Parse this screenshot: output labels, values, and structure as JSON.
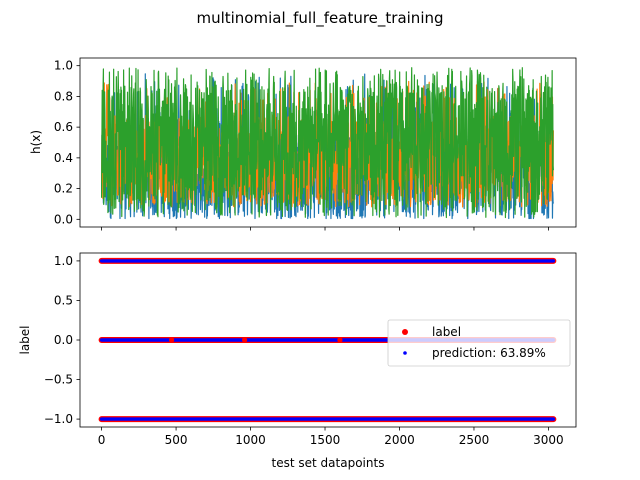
{
  "chart_data": [
    {
      "type": "line",
      "title": "multinomial_full_feature_training",
      "xlabel": "",
      "ylabel": "h(x)",
      "xlim": [
        -145,
        3185
      ],
      "ylim": [
        -0.05,
        1.05
      ],
      "yticks": [
        0.0,
        0.2,
        0.4,
        0.6,
        0.8,
        1.0
      ],
      "ytick_labels": [
        "0.0",
        "0.2",
        "0.4",
        "0.6",
        "0.8",
        "1.0"
      ],
      "xticks": [
        0,
        500,
        1000,
        1500,
        2000,
        2500,
        3000
      ],
      "x_range": [
        0,
        3033
      ],
      "n_points": 3034,
      "series": [
        {
          "color": "#1f77b4",
          "pattern": "noisy probability trace mostly between 0.0 and 0.6, peaks near 0.95"
        },
        {
          "color": "#ff7f0e",
          "pattern": "noisy probability trace mostly between 0.1 and 0.75, with occasional spikes"
        },
        {
          "color": "#2ca02c",
          "pattern": "dense noisy probability trace spanning 0.02 to 0.99, drawn on top"
        }
      ],
      "grid": false
    },
    {
      "type": "scatter",
      "xlabel": "test set datapoints",
      "ylabel": "label",
      "xlim": [
        -145,
        3185
      ],
      "ylim": [
        -1.1,
        1.1
      ],
      "yticks": [
        -1.0,
        -0.5,
        0.0,
        0.5,
        1.0
      ],
      "ytick_labels": [
        "−1.0",
        "−0.5",
        "0.0",
        "0.5",
        "1.0"
      ],
      "xticks": [
        0,
        500,
        1000,
        1500,
        2000,
        2500,
        3000
      ],
      "xtick_labels": [
        "0",
        "500",
        "1000",
        "1500",
        "2000",
        "2500",
        "3000"
      ],
      "x_range": [
        0,
        3033
      ],
      "y_levels": [
        1.0,
        0.0,
        -1.0
      ],
      "series": [
        {
          "name": "label",
          "color": "#ff0000",
          "marker": "circle-large"
        },
        {
          "name": "prediction: 63.89%",
          "color": "#0000ff",
          "marker": "circle-small"
        }
      ],
      "legend_position": "center-right",
      "grid": false
    }
  ]
}
